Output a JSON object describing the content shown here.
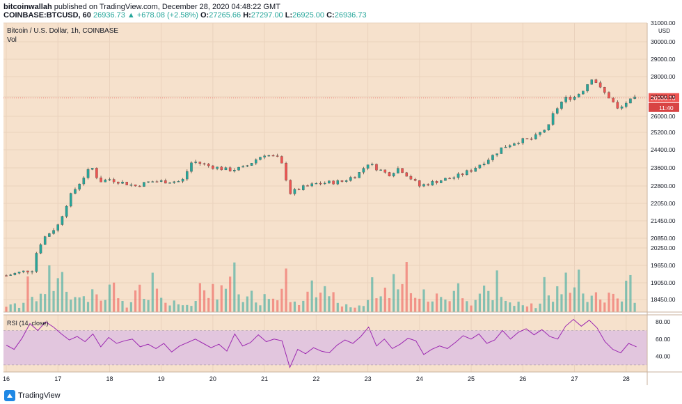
{
  "header": {
    "author": "bitcoinwallah",
    "published": "published on TradingView.com, December 28, 2020 04:48:22 GMT",
    "symbol": "COINBASE:BTCUSD, 60",
    "last": "26936.73",
    "change": "▲ +678.08 (+2.58%)",
    "o_label": "O:",
    "o_value": "27265.66",
    "h_label": "H:",
    "h_value": "27297.00",
    "l_label": "L:",
    "l_value": "26925.00",
    "c_label": "C:",
    "c_value": "26936.73"
  },
  "footer": {
    "brand": "TradingView"
  },
  "colors": {
    "up": "#26a69a",
    "down": "#ef5350",
    "bg": "#f6e1cc",
    "rsi_band": "#e2c6de",
    "rsi_line": "#9c27b0",
    "price_line": "#ef5350"
  },
  "chart_data": [
    {
      "type": "candlestick",
      "title": "Bitcoin / U.S. Dollar, 1h, COINBASE",
      "indicator_label": "Vol",
      "currency": "USD",
      "y_ticks": [
        31000,
        30000,
        29000,
        28000,
        27000,
        26000,
        25200,
        24400,
        23600,
        22800,
        22050,
        21450,
        20850,
        20250,
        19650,
        19050,
        18450
      ],
      "y_tick_labels": [
        "31000.00",
        "30000.00",
        "29000.00",
        "28000.00",
        "27000.00",
        "26000.00",
        "25200.00",
        "24400.00",
        "23600.00",
        "22800.00",
        "22050.00",
        "21450.00",
        "20850.00",
        "20250.00",
        "19650.00",
        "19050.00",
        "18450.00"
      ],
      "x_tick_labels": [
        "16",
        "17",
        "18",
        "19",
        "20",
        "21",
        "22",
        "23",
        "24",
        "25",
        "26",
        "27",
        "28"
      ],
      "last_price": 26936.73,
      "last_price_label": "26936.73",
      "countdown_label": "11:40",
      "close_path": [
        [
          "16",
          19300
        ],
        [
          "16.5",
          19500
        ],
        [
          "16.6",
          20200
        ],
        [
          "16.75",
          20900
        ],
        [
          "17",
          21300
        ],
        [
          "17.25",
          22400
        ],
        [
          "17.5",
          23200
        ],
        [
          "17.65",
          23650
        ],
        [
          "17.8",
          23000
        ],
        [
          "18",
          23100
        ],
        [
          "18.5",
          22800
        ],
        [
          "18.8",
          23000
        ],
        [
          "19",
          23000
        ],
        [
          "19.4",
          23000
        ],
        [
          "19.6",
          23900
        ],
        [
          "19.9",
          23700
        ],
        [
          "20.3",
          23500
        ],
        [
          "20.6",
          23600
        ],
        [
          "20.85",
          24000
        ],
        [
          "21",
          24200
        ],
        [
          "21.3",
          24000
        ],
        [
          "21.5",
          22500
        ],
        [
          "21.7",
          22700
        ],
        [
          "22",
          22900
        ],
        [
          "22.5",
          23000
        ],
        [
          "22.8",
          23300
        ],
        [
          "23",
          23800
        ],
        [
          "23.4",
          23300
        ],
        [
          "23.6",
          23600
        ],
        [
          "24",
          22800
        ],
        [
          "24.4",
          23050
        ],
        [
          "24.7",
          23200
        ],
        [
          "25",
          23500
        ],
        [
          "25.4",
          24100
        ],
        [
          "25.6",
          24500
        ],
        [
          "25.9",
          24800
        ],
        [
          "26.2",
          24900
        ],
        [
          "26.5",
          25500
        ],
        [
          "26.6",
          26200
        ],
        [
          "26.8",
          26900
        ],
        [
          "27",
          27000
        ],
        [
          "27.15",
          27300
        ],
        [
          "27.35",
          28000
        ],
        [
          "27.5",
          27400
        ],
        [
          "27.7",
          26900
        ],
        [
          "27.85",
          26300
        ],
        [
          "28",
          26700
        ],
        [
          "28.2",
          26937
        ]
      ],
      "volume_scale_max": 1,
      "volume_relative_levels": [
        0.1,
        0.1,
        0.12,
        0.08,
        0.15,
        0.45,
        0.3,
        0.2,
        0.35,
        0.25,
        0.6,
        0.4,
        0.5,
        0.85,
        0.3,
        0.2,
        0.25,
        0.3,
        0.2,
        0.15,
        0.4,
        0.25,
        0.2,
        0.15,
        0.45,
        0.55,
        0.2,
        0.15,
        0.1,
        0.2,
        0.35,
        0.5,
        0.3,
        0.25,
        0.55,
        0.3,
        0.25,
        0.2,
        0.1,
        0.15
      ]
    },
    {
      "type": "line",
      "title": "RSI (14, close)",
      "y_ticks": [
        80,
        60,
        40
      ],
      "y_tick_labels": [
        "80.00",
        "60.00",
        "40.00"
      ],
      "band": [
        30,
        70
      ],
      "series": [
        {
          "values": [
            53,
            48,
            61,
            78,
            70,
            80,
            74,
            66,
            59,
            63,
            57,
            66,
            51,
            62,
            55,
            58,
            60,
            51,
            54,
            49,
            55,
            45,
            52,
            56,
            60,
            55,
            50,
            54,
            46,
            66,
            52,
            56,
            65,
            57,
            60,
            58,
            27,
            48,
            43,
            50,
            46,
            44,
            53,
            59,
            55,
            63,
            74,
            52,
            60,
            49,
            54,
            61,
            58,
            42,
            48,
            52,
            49,
            56,
            64,
            60,
            66,
            55,
            59,
            70,
            60,
            68,
            72,
            65,
            71,
            63,
            60,
            75,
            83,
            75,
            82,
            73,
            57,
            48,
            44,
            55,
            51
          ]
        }
      ]
    }
  ]
}
